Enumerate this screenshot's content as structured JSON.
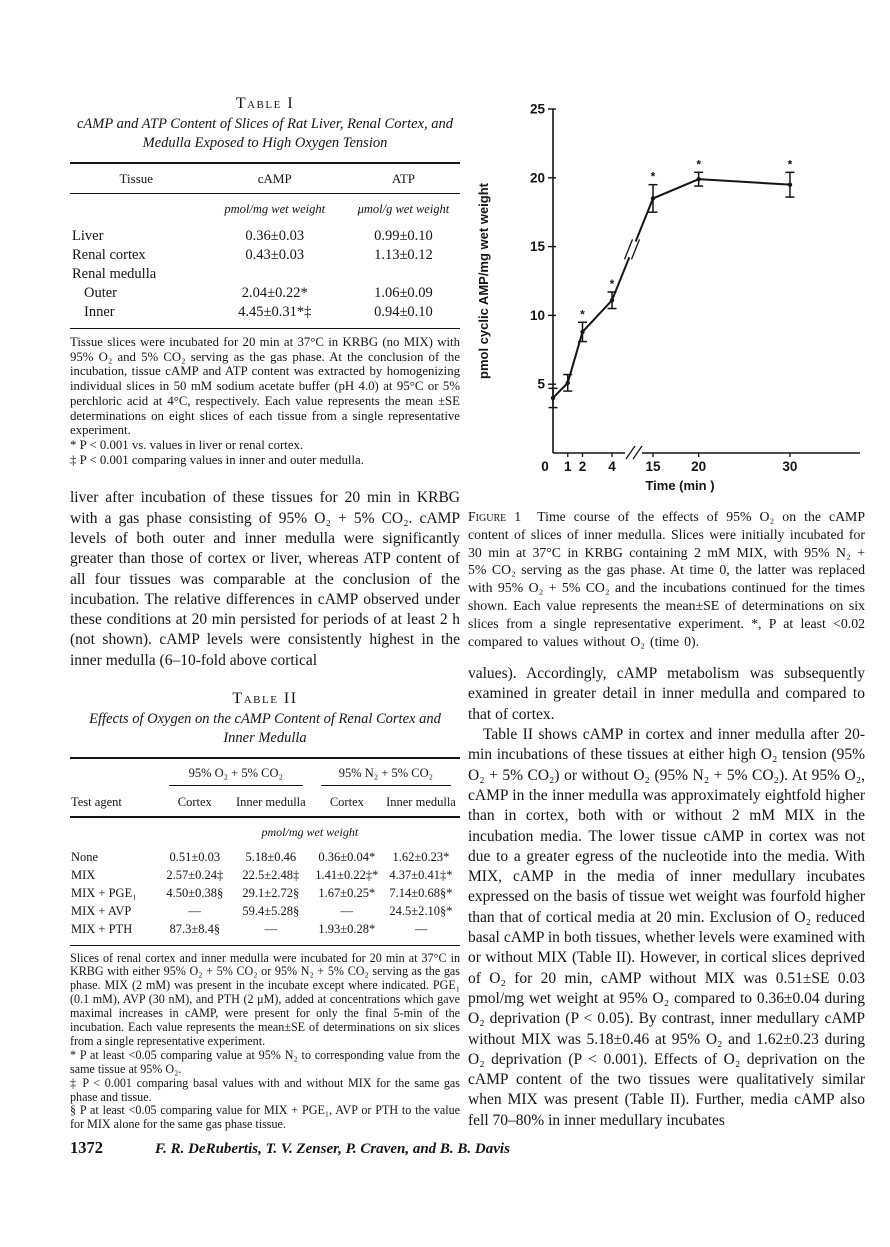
{
  "table1": {
    "label": "Table I",
    "caption": "cAMP and ATP Content of Slices of Rat Liver, Renal Cortex, and Medulla Exposed to High Oxygen Tension",
    "col_headers": {
      "tissue": "Tissue",
      "camp": "cAMP",
      "atp": "ATP"
    },
    "units": {
      "camp": "pmol/mg wet weight",
      "atp": "μmol/g wet weight"
    },
    "rows": [
      {
        "tissue": "Liver",
        "camp": "0.36±0.03",
        "atp": "0.99±0.10"
      },
      {
        "tissue": "Renal cortex",
        "camp": "0.43±0.03",
        "atp": "1.13±0.12"
      },
      {
        "tissue": "Renal medulla",
        "camp": "",
        "atp": ""
      },
      {
        "tissue": "Outer",
        "camp": "2.04±0.22*",
        "atp": "1.06±0.09"
      },
      {
        "tissue": "Inner",
        "camp": "4.45±0.31*‡",
        "atp": "0.94±0.10"
      }
    ],
    "footnote_body": "Tissue slices were incubated for 20 min at 37°C in KRBG (no MIX) with 95% O₂ and 5% CO₂ serving as the gas phase. At the conclusion of the incubation, tissue cAMP and ATP content was extracted by homogenizing individual slices in 50 mM sodium acetate buffer (pH 4.0) at 95°C or 5% perchloric acid at 4°C, respectively. Each value represents the mean ±SE determinations on eight slices of each tissue from a single representative experiment.",
    "footnote_star": "* P < 0.001 vs. values in liver or renal cortex.",
    "footnote_dagger": "‡ P < 0.001 comparing values in inner and outer medulla."
  },
  "left_paragraph": "liver after incubation of these tissues for 20 min in KRBG with a gas phase consisting of 95% O₂ + 5% CO₂. cAMP levels of both outer and inner medulla were significantly greater than those of cortex or liver, whereas ATP content of all four tissues was comparable at the conclusion of the incubation. The relative differences in cAMP observed under these conditions at 20 min persisted for periods of at least 2 h (not shown). cAMP levels were consistently highest in the inner medulla (6–10-fold above cortical",
  "table2": {
    "label": "Table II",
    "caption": "Effects of Oxygen on the cAMP Content of Renal Cortex and Inner Medulla",
    "spanners": {
      "o2": "95% O₂ + 5% CO₂",
      "n2": "95% N₂ + 5% CO₂"
    },
    "col_headers": {
      "agent": "Test agent",
      "cortex1": "Cortex",
      "medulla1": "Inner medulla",
      "cortex2": "Cortex",
      "medulla2": "Inner medulla"
    },
    "units": "pmol/mg wet weight",
    "rows": [
      {
        "agent": "None",
        "o2_cortex": "0.51±0.03",
        "o2_medulla": "5.18±0.46",
        "n2_cortex": "0.36±0.04*",
        "n2_medulla": "1.62±0.23*"
      },
      {
        "agent": "MIX",
        "o2_cortex": "2.57±0.24‡",
        "o2_medulla": "22.5±2.48‡",
        "n2_cortex": "1.41±0.22‡*",
        "n2_medulla": "4.37±0.41‡*"
      },
      {
        "agent": "MIX + PGE₁",
        "o2_cortex": "4.50±0.38§",
        "o2_medulla": "29.1±2.72§",
        "n2_cortex": "1.67±0.25*",
        "n2_medulla": "7.14±0.68§*"
      },
      {
        "agent": "MIX + AVP",
        "o2_cortex": "—",
        "o2_medulla": "59.4±5.28§",
        "n2_cortex": "—",
        "n2_medulla": "24.5±2.10§*"
      },
      {
        "agent": "MIX + PTH",
        "o2_cortex": "87.3±8.4§",
        "o2_medulla": "—",
        "n2_cortex": "1.93±0.28*",
        "n2_medulla": "—"
      }
    ],
    "footnote_body": "Slices of renal cortex and inner medulla were incubated for 20 min at 37°C in KRBG with either 95% O₂ + 5% CO₂ or 95% N₂ + 5% CO₂ serving as the gas phase. MIX (2 mM) was present in the incubate except where indicated. PGE₁ (0.1 mM), AVP (30 nM), and PTH (2 μM), added at concentrations which gave maximal increases in cAMP, were present for only the final 5-min of the incubation. Each value represents the mean±SE of determinations on six slices from a single representative experiment.",
    "footnote_star": "* P at least <0.05 comparing value at 95% N₂ to corresponding value from the same tissue at 95% O₂.",
    "footnote_dagger": "‡ P < 0.001 comparing basal values with and without MIX for the same gas phase and tissue.",
    "footnote_section": "§ P at least <0.05 comparing value for MIX + PGE₁, AVP or PTH to the value for MIX alone for the same gas phase tissue."
  },
  "figure1": {
    "caption_label": "Figure 1",
    "caption_text": "Time course of the effects of 95% O₂ on the cAMP content of slices of inner medulla. Slices were initially incubated for 30 min at 37°C in KRBG containing 2 mM MIX, with 95% N₂ + 5% CO₂ serving as the gas phase. At time 0, the latter was replaced with 95% O₂ + 5% CO₂ and the incubations continued for the times shown. Each value represents the mean±SE of determinations on six slices from a single representative experiment. *, P at least <0.02 compared to values without O₂ (time 0)."
  },
  "chart_data": {
    "type": "line",
    "x": [
      0,
      1,
      2,
      4,
      15,
      20,
      30
    ],
    "y": [
      4.0,
      5.1,
      8.8,
      11.1,
      18.5,
      19.9,
      19.5
    ],
    "se": [
      0.7,
      0.6,
      0.7,
      0.6,
      1.0,
      0.5,
      0.9
    ],
    "significant": [
      false,
      false,
      true,
      true,
      true,
      true,
      true
    ],
    "title": "",
    "xlabel": "Time (min )",
    "ylabel": "pmol cyclic AMP/mg wet weight",
    "ylim": [
      0,
      25
    ],
    "yticks": [
      5,
      10,
      15,
      20,
      25
    ],
    "xticks": [
      0,
      1,
      2,
      4,
      15,
      20,
      30
    ],
    "axis_break_between": [
      4,
      15
    ],
    "grid": false,
    "legend": "none"
  },
  "right_paragraphs": {
    "p1": "values). Accordingly, cAMP metabolism was subsequently examined in greater detail in inner medulla and compared to that of cortex.",
    "p2": "Table II shows cAMP in cortex and inner medulla after 20-min incubations of these tissues at either high O₂ tension (95% O₂ + 5% CO₂) or without O₂ (95% N₂ + 5% CO₂). At 95% O₂, cAMP in the inner medulla was approximately eightfold higher than in cortex, both with or without 2 mM MIX in the incubation media. The lower tissue cAMP in cortex was not due to a greater egress of the nucleotide into the media. With MIX, cAMP in the media of inner medullary incubates expressed on the basis of tissue wet weight was fourfold higher than that of cortical media at 20 min. Exclusion of O₂ reduced basal cAMP in both tissues, whether levels were examined with or without MIX (Table II). However, in cortical slices deprived of O₂ for 20 min, cAMP without MIX was 0.51±SE 0.03 pmol/mg wet weight at 95% O₂ compared to 0.36±0.04 during O₂ deprivation (P < 0.05). By contrast, inner medullary cAMP without MIX was 5.18±0.46 at 95% O₂ and 1.62±0.23 during O₂ deprivation (P < 0.001). Effects of O₂ deprivation on the cAMP content of the two tissues were qualitatively similar when MIX was present (Table II). Further, media cAMP also fell 70–80% in inner medullary incubates"
  },
  "footer": {
    "page_number": "1372",
    "authors": "F. R. DeRubertis, T. V. Zenser, P. Craven, and B. B. Davis"
  },
  "ink_color": "#151515",
  "paper_color": "#ffffff"
}
